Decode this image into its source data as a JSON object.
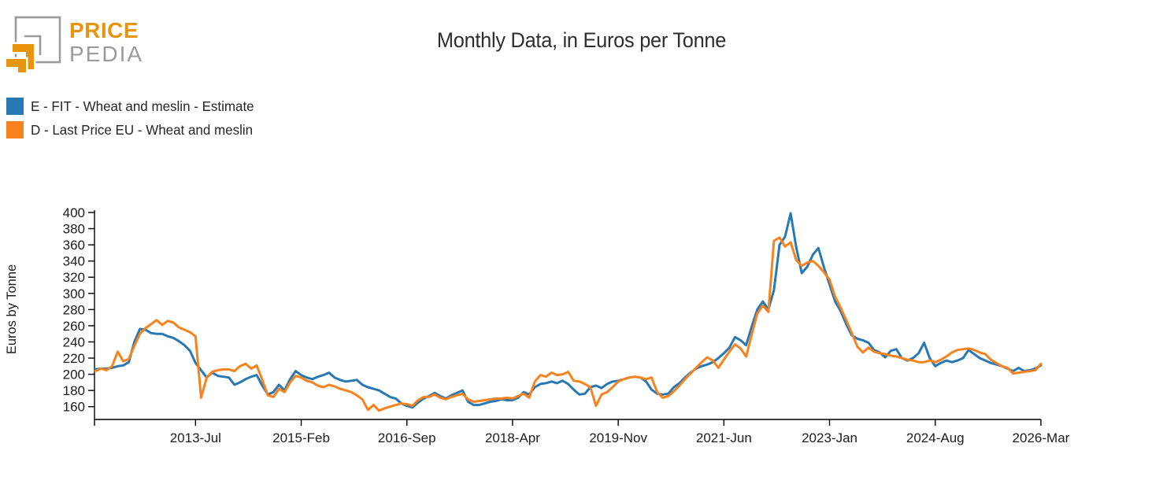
{
  "logo": {
    "brand_top": "PRICE",
    "brand_bottom": "PEDIA",
    "orange": "#e8940f",
    "gray": "#9b9b9b"
  },
  "title": "Monthly Data, in Euros per Tonne",
  "chart_data": {
    "type": "line",
    "title": "Monthly Data, in Euros per Tonne",
    "xlabel": "",
    "ylabel": "Euros by Tonne",
    "x_start": "2012-01",
    "x_end": "2026-03",
    "frequency": "monthly",
    "grid": false,
    "legend_position": "top-left",
    "ylim": [
      144,
      403
    ],
    "y_ticks": [
      160,
      180,
      200,
      220,
      240,
      260,
      280,
      300,
      320,
      340,
      360,
      380,
      400
    ],
    "x_tick_labels": [
      "2013-Jul",
      "2015-Feb",
      "2016-Sep",
      "2018-Apr",
      "2019-Nov",
      "2021-Jun",
      "2023-Jan",
      "2024-Aug",
      "2026-Mar"
    ],
    "x_tick_month_indices": [
      18,
      37,
      56,
      75,
      94,
      113,
      132,
      151,
      170
    ],
    "series": [
      {
        "name": "E - FIT - Wheat and meslin - Estimate",
        "color": "#2878b4",
        "values": [
          206,
          207,
          207,
          208,
          210,
          211,
          215,
          240,
          256,
          255,
          251,
          250,
          250,
          247,
          245,
          241,
          236,
          229,
          214,
          205,
          196,
          202,
          198,
          197,
          196,
          187,
          190,
          194,
          197,
          199,
          186,
          175,
          178,
          187,
          180,
          194,
          204,
          199,
          196,
          194,
          197,
          199,
          202,
          196,
          193,
          191,
          192,
          193,
          187,
          184,
          182,
          180,
          176,
          172,
          170,
          164,
          161,
          159,
          165,
          170,
          173,
          177,
          173,
          170,
          174,
          177,
          180,
          166,
          162,
          162,
          164,
          166,
          167,
          169,
          168,
          168,
          171,
          178,
          175,
          184,
          188,
          189,
          191,
          189,
          192,
          188,
          181,
          175,
          176,
          184,
          186,
          183,
          188,
          191,
          192,
          194,
          196,
          197,
          196,
          191,
          181,
          176,
          175,
          176,
          184,
          189,
          196,
          202,
          207,
          210,
          212,
          215,
          220,
          226,
          233,
          246,
          242,
          236,
          259,
          280,
          290,
          280,
          304,
          360,
          370,
          399,
          357,
          325,
          333,
          348,
          356,
          332,
          311,
          290,
          278,
          262,
          248,
          244,
          242,
          239,
          230,
          227,
          221,
          229,
          231,
          220,
          217,
          220,
          226,
          239,
          220,
          210,
          214,
          217,
          215,
          217,
          220,
          230,
          225,
          220,
          217,
          214,
          212,
          210,
          207,
          204,
          208,
          204,
          205,
          207,
          211
        ]
      },
      {
        "name": "D - Last Price EU - Wheat and meslin",
        "color": "#f8821d",
        "values": [
          204,
          207,
          205,
          210,
          228,
          216,
          219,
          235,
          250,
          257,
          262,
          267,
          261,
          266,
          264,
          258,
          255,
          252,
          247,
          171,
          196,
          203,
          205,
          206,
          206,
          204,
          210,
          213,
          207,
          211,
          193,
          174,
          172,
          182,
          178,
          190,
          198,
          196,
          192,
          190,
          186,
          184,
          187,
          185,
          182,
          180,
          178,
          174,
          169,
          156,
          162,
          155,
          158,
          160,
          162,
          164,
          163,
          161,
          168,
          172,
          172,
          175,
          171,
          169,
          172,
          174,
          176,
          169,
          166,
          167,
          168,
          169,
          170,
          170,
          171,
          170,
          173,
          176,
          171,
          191,
          199,
          197,
          202,
          199,
          200,
          203,
          192,
          191,
          188,
          184,
          161,
          175,
          178,
          184,
          191,
          194,
          196,
          197,
          196,
          194,
          196,
          178,
          171,
          173,
          179,
          186,
          194,
          201,
          208,
          215,
          221,
          217,
          208,
          218,
          228,
          237,
          232,
          222,
          249,
          275,
          285,
          277,
          365,
          369,
          358,
          363,
          341,
          334,
          338,
          340,
          334,
          326,
          317,
          296,
          282,
          267,
          251,
          234,
          227,
          233,
          228,
          226,
          225,
          223,
          222,
          220,
          218,
          217,
          215,
          215,
          217,
          215,
          218,
          222,
          227,
          230,
          231,
          232,
          230,
          227,
          225,
          218,
          214,
          210,
          208,
          201,
          202,
          203,
          204,
          205,
          213
        ]
      }
    ]
  }
}
